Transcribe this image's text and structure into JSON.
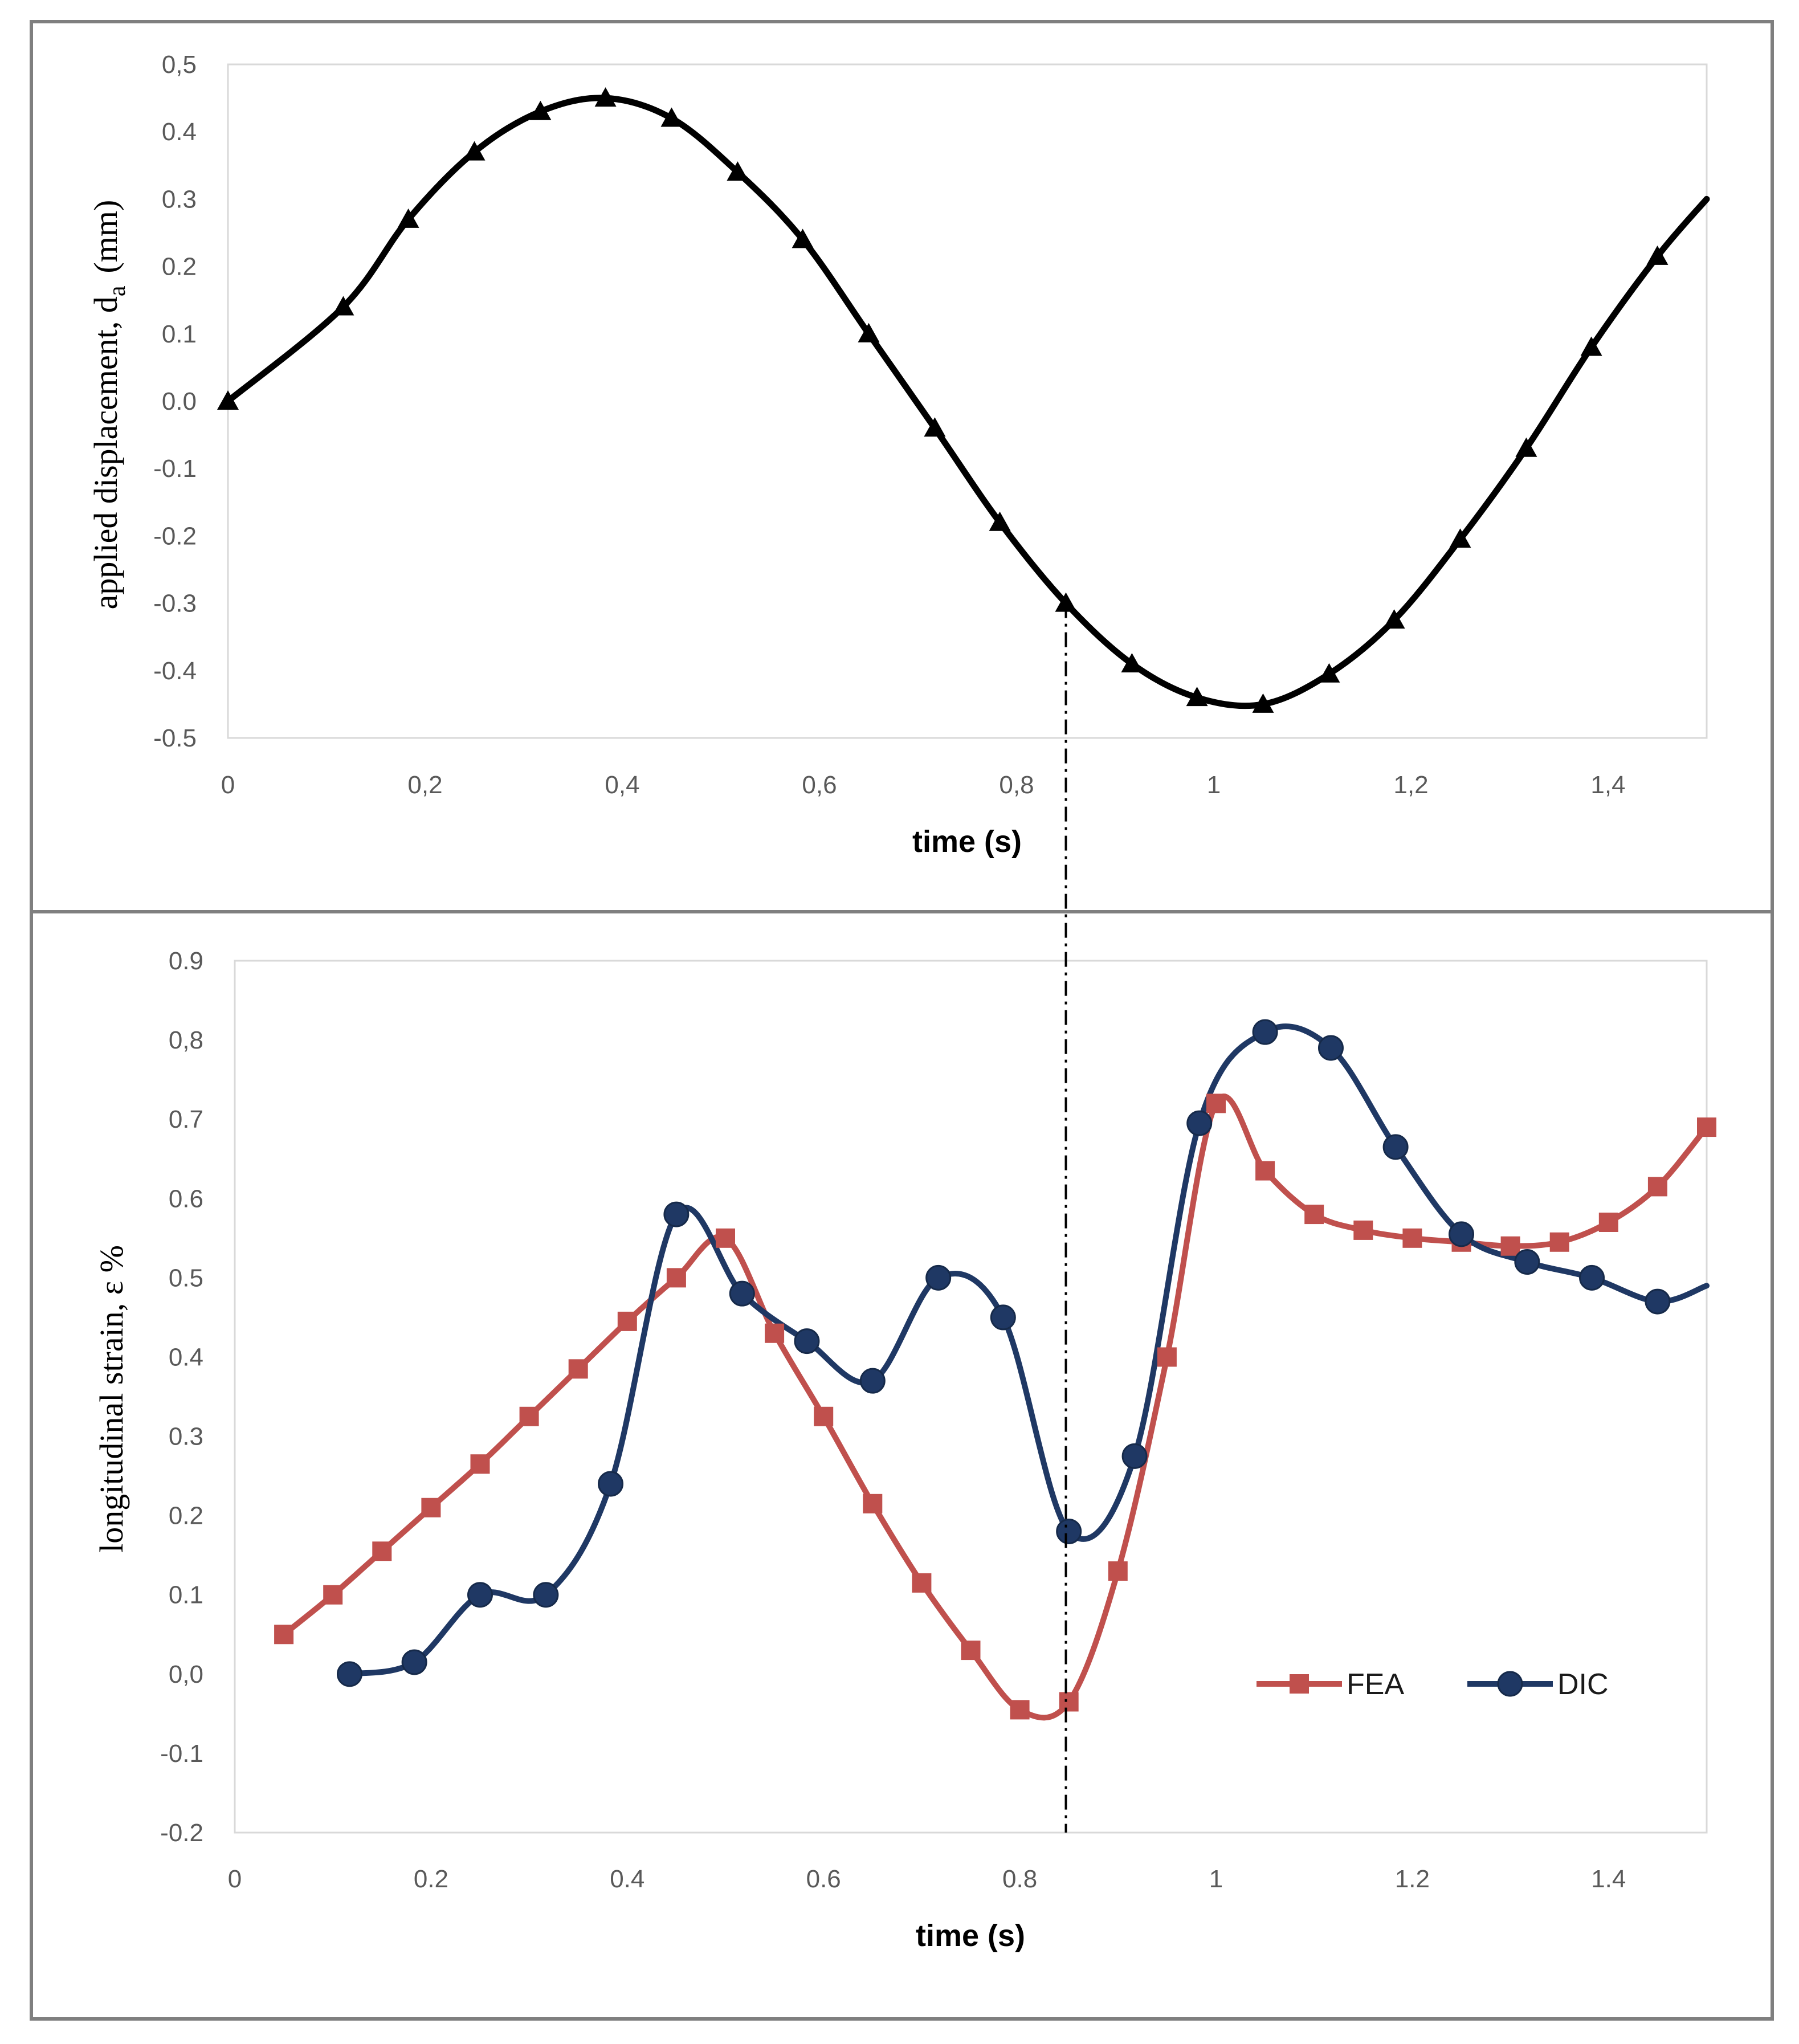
{
  "chart_data": [
    {
      "type": "line",
      "xlabel": "time (s)",
      "ylabel": "applied displacement, d",
      "ylabel_sub": "a",
      "ylabel_unit": "(mm)",
      "xlim": [
        0,
        1.5
      ],
      "ylim": [
        -0.5,
        0.5
      ],
      "x_ticks": [
        0,
        0.2,
        0.4,
        0.6,
        0.8,
        1,
        1.2,
        1.4
      ],
      "x_tick_labels": [
        "0",
        "0,2",
        "0,4",
        "0,6",
        "0,8",
        "1",
        "1,2",
        "1,4"
      ],
      "y_ticks": [
        0.5,
        0.4,
        0.3,
        0.2,
        0.1,
        0.0,
        -0.1,
        -0.2,
        -0.3,
        -0.4,
        -0.5
      ],
      "y_tick_labels": [
        "0,5",
        "0.4",
        "0.3",
        "0.2",
        "0.1",
        "0.0",
        "-0.1",
        "-0.2",
        "-0.3",
        "-0.4",
        "-0.5"
      ],
      "grid": false,
      "series": [
        {
          "name": "applied displacement",
          "color": "#000000",
          "marker": "triangle",
          "x": [
            0,
            0.117,
            0.183,
            0.25,
            0.317,
            0.383,
            0.45,
            0.517,
            0.583,
            0.65,
            0.717,
            0.783,
            0.85,
            0.917,
            0.983,
            1.05,
            1.117,
            1.183,
            1.25,
            1.317,
            1.383,
            1.45
          ],
          "values": [
            0.0,
            0.14,
            0.27,
            0.37,
            0.43,
            0.45,
            0.42,
            0.34,
            0.24,
            0.1,
            -0.04,
            -0.18,
            -0.3,
            -0.39,
            -0.44,
            -0.45,
            -0.405,
            -0.325,
            -0.205,
            -0.07,
            0.08,
            0.215
          ],
          "line_end": [
            1.5,
            0.3
          ]
        }
      ]
    },
    {
      "type": "line",
      "xlabel": "time (s)",
      "ylabel": "longitudinal strain, ε %",
      "xlim": [
        0,
        1.5
      ],
      "ylim": [
        -0.2,
        0.9
      ],
      "x_ticks": [
        0,
        0.2,
        0.4,
        0.6,
        0.8,
        1,
        1.2,
        1.4
      ],
      "x_tick_labels": [
        "0",
        "0.2",
        "0.4",
        "0.6",
        "0.8",
        "1",
        "1.2",
        "1.4"
      ],
      "y_ticks": [
        0.9,
        0.8,
        0.7,
        0.6,
        0.5,
        0.4,
        0.3,
        0.2,
        0.1,
        0.0,
        -0.1,
        -0.2
      ],
      "y_tick_labels": [
        "0.9",
        "0,8",
        "0.7",
        "0.6",
        "0.5",
        "0.4",
        "0.3",
        "0.2",
        "0.1",
        "0,0",
        "-0.1",
        "-0.2"
      ],
      "grid": false,
      "legend": "bottom-right",
      "series": [
        {
          "name": "FEA",
          "color": "#c0504d",
          "marker": "square",
          "x": [
            0.05,
            0.1,
            0.15,
            0.2,
            0.25,
            0.3,
            0.35,
            0.4,
            0.45,
            0.5,
            0.55,
            0.6,
            0.65,
            0.7,
            0.75,
            0.8,
            0.85,
            0.9,
            0.95,
            1.0,
            1.05,
            1.1,
            1.15,
            1.2,
            1.25,
            1.3,
            1.35,
            1.4,
            1.45,
            1.5
          ],
          "values": [
            0.05,
            0.1,
            0.155,
            0.21,
            0.265,
            0.325,
            0.385,
            0.445,
            0.5,
            0.55,
            0.43,
            0.325,
            0.215,
            0.115,
            0.03,
            -0.045,
            -0.035,
            0.13,
            0.4,
            0.72,
            0.635,
            0.58,
            0.56,
            0.55,
            0.545,
            0.54,
            0.545,
            0.57,
            0.615,
            0.69
          ]
        },
        {
          "name": "DIC",
          "color": "#1f3864",
          "marker": "circle",
          "x": [
            0.117,
            0.183,
            0.25,
            0.317,
            0.383,
            0.45,
            0.517,
            0.583,
            0.65,
            0.717,
            0.783,
            0.85,
            0.917,
            0.983,
            1.05,
            1.117,
            1.183,
            1.25,
            1.317,
            1.383,
            1.45
          ],
          "values": [
            0.0,
            0.015,
            0.1,
            0.1,
            0.24,
            0.58,
            0.48,
            0.42,
            0.37,
            0.5,
            0.45,
            0.18,
            0.275,
            0.695,
            0.81,
            0.79,
            0.665,
            0.555,
            0.52,
            0.5,
            0.47
          ],
          "line_end": [
            1.5,
            0.49
          ]
        }
      ]
    }
  ],
  "reference_line_time": 0.85
}
